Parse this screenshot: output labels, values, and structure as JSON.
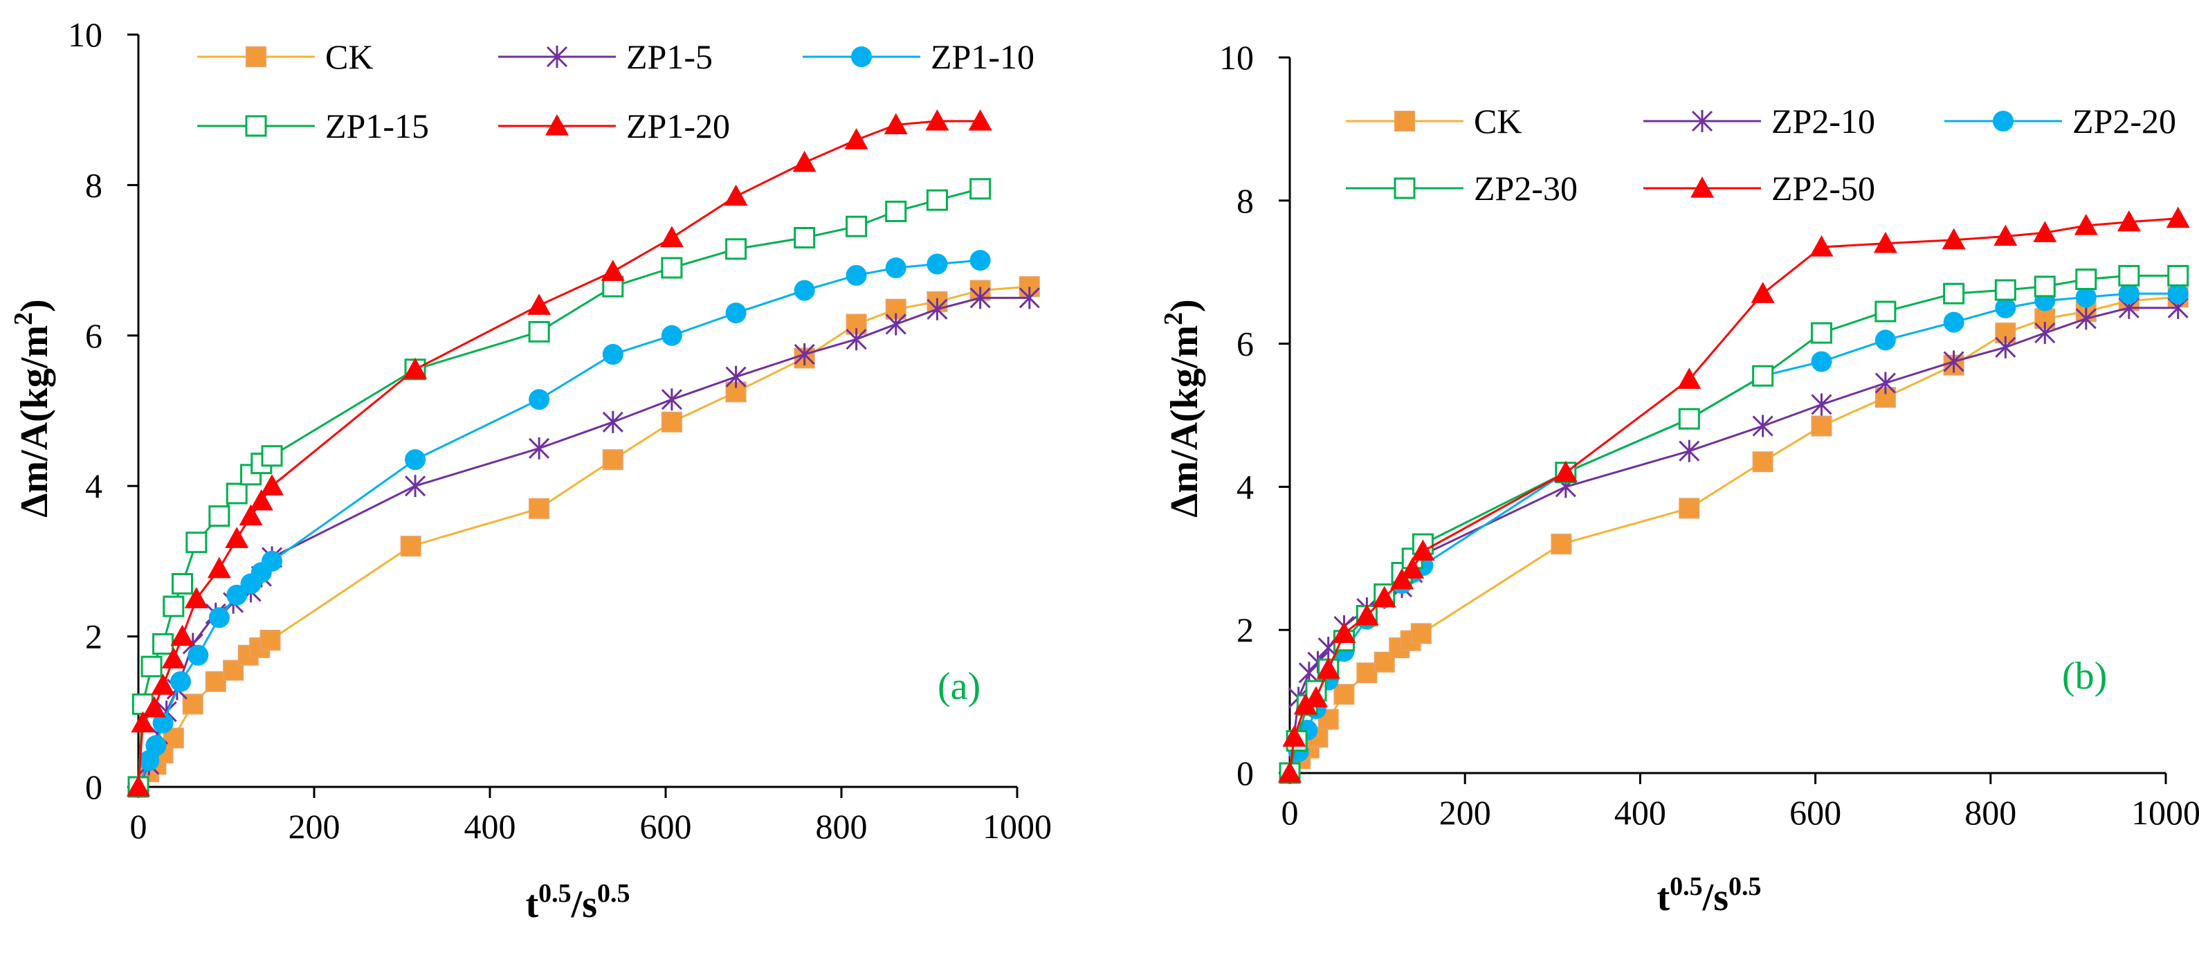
{
  "chart_data": [
    {
      "type": "line",
      "panel_label": "(a)",
      "xlabel_base": "t",
      "xlabel_exp1": "0.5",
      "xlabel_mid": "/s",
      "xlabel_exp2": "0.5",
      "ylabel_base": "Δm/A(kg/m",
      "ylabel_exp": "2",
      "ylabel_end": ")",
      "xlim": [
        0,
        1000
      ],
      "ylim": [
        0,
        10
      ],
      "xticks": [
        "0",
        "200",
        "400",
        "600",
        "800",
        "1000"
      ],
      "yticks": [
        "0",
        "2",
        "4",
        "6",
        "8",
        "10"
      ],
      "series": [
        {
          "name": "CK",
          "color": "#F5B335",
          "marker": "filled-square",
          "marker_color": "#F29A3A",
          "x": [
            0,
            12,
            20,
            28,
            40,
            62,
            88,
            108,
            125,
            138,
            150,
            310,
            456,
            540,
            607,
            680,
            758,
            817,
            862,
            909,
            958,
            1014
          ],
          "y": [
            0,
            0.2,
            0.3,
            0.45,
            0.65,
            1.1,
            1.4,
            1.55,
            1.75,
            1.85,
            1.95,
            3.2,
            3.7,
            4.35,
            4.85,
            5.25,
            5.7,
            6.15,
            6.35,
            6.45,
            6.6,
            6.65
          ]
        },
        {
          "name": "ZP1-5",
          "color": "#7030A0",
          "marker": "star-x",
          "marker_color": "#7030A0",
          "x": [
            0,
            12,
            22,
            32,
            44,
            62,
            88,
            108,
            128,
            140,
            152,
            315,
            456,
            540,
            607,
            680,
            758,
            817,
            862,
            909,
            958,
            1014
          ],
          "y": [
            0,
            0.3,
            0.7,
            1.0,
            1.3,
            1.9,
            2.3,
            2.45,
            2.6,
            2.8,
            3.05,
            4.0,
            4.5,
            4.85,
            5.15,
            5.45,
            5.75,
            5.95,
            6.15,
            6.35,
            6.5,
            6.5
          ]
        },
        {
          "name": "ZP1-10",
          "color": "#00B0F0",
          "marker": "filled-circle",
          "marker_color": "#00B0F0",
          "x": [
            0,
            12,
            20,
            28,
            48,
            68,
            92,
            112,
            128,
            140,
            152,
            315,
            456,
            540,
            607,
            680,
            758,
            817,
            862,
            909,
            958
          ],
          "y": [
            0,
            0.35,
            0.55,
            0.85,
            1.4,
            1.75,
            2.25,
            2.55,
            2.7,
            2.85,
            3.0,
            4.35,
            5.15,
            5.75,
            6.0,
            6.3,
            6.6,
            6.8,
            6.9,
            6.95,
            7.0
          ]
        },
        {
          "name": "ZP1-15",
          "color": "#00B050",
          "marker": "open-square",
          "marker_color": "#00B050",
          "x": [
            0,
            5,
            15,
            28,
            40,
            50,
            66,
            92,
            112,
            128,
            140,
            152,
            315,
            456,
            540,
            607,
            680,
            758,
            817,
            862,
            909,
            958
          ],
          "y": [
            0,
            1.1,
            1.6,
            1.9,
            2.4,
            2.7,
            3.25,
            3.6,
            3.9,
            4.15,
            4.3,
            4.4,
            5.55,
            6.05,
            6.65,
            6.9,
            7.15,
            7.3,
            7.45,
            7.65,
            7.8,
            7.95
          ]
        },
        {
          "name": "ZP1-20",
          "color": "#FF0000",
          "marker": "filled-triangle",
          "marker_color": "#FF0000",
          "x": [
            0,
            5,
            18,
            28,
            40,
            50,
            66,
            92,
            112,
            128,
            140,
            152,
            315,
            456,
            540,
            607,
            680,
            758,
            817,
            862,
            909,
            958
          ],
          "y": [
            0,
            0.85,
            1.05,
            1.35,
            1.7,
            2.0,
            2.5,
            2.9,
            3.3,
            3.6,
            3.8,
            4.0,
            5.55,
            6.4,
            6.85,
            7.3,
            7.85,
            8.3,
            8.6,
            8.8,
            8.85,
            8.85
          ]
        }
      ]
    },
    {
      "type": "line",
      "panel_label": "(b)",
      "xlabel_base": "t",
      "xlabel_exp1": "0.5",
      "xlabel_mid": "/s",
      "xlabel_exp2": "0.5",
      "ylabel_base": "Δm/A(kg/m",
      "ylabel_exp": "2",
      "ylabel_end": ")",
      "xlim": [
        0,
        1000
      ],
      "ylim": [
        0,
        10
      ],
      "xticks": [
        "0",
        "200",
        "400",
        "600",
        "800",
        "1000"
      ],
      "yticks": [
        "0",
        "2",
        "4",
        "6",
        "8",
        "10"
      ],
      "series": [
        {
          "name": "CK",
          "color": "#F5B335",
          "marker": "filled-square",
          "marker_color": "#F29A3A",
          "x": [
            0,
            12,
            22,
            32,
            44,
            62,
            88,
            108,
            125,
            138,
            150,
            310,
            456,
            540,
            607,
            680,
            758,
            817,
            862,
            909,
            958,
            1014
          ],
          "y": [
            0,
            0.2,
            0.35,
            0.5,
            0.75,
            1.1,
            1.4,
            1.55,
            1.75,
            1.85,
            1.95,
            3.2,
            3.7,
            4.35,
            4.85,
            5.25,
            5.7,
            6.15,
            6.35,
            6.45,
            6.6,
            6.65
          ]
        },
        {
          "name": "ZP2-10",
          "color": "#7030A0",
          "marker": "star-x",
          "marker_color": "#7030A0",
          "x": [
            0,
            10,
            22,
            32,
            44,
            62,
            88,
            108,
            128,
            140,
            152,
            315,
            456,
            540,
            607,
            680,
            758,
            817,
            862,
            909,
            958,
            1014
          ],
          "y": [
            0,
            1.05,
            1.4,
            1.55,
            1.75,
            2.05,
            2.3,
            2.45,
            2.6,
            2.8,
            3.05,
            4.0,
            4.5,
            4.85,
            5.15,
            5.45,
            5.75,
            5.95,
            6.15,
            6.35,
            6.5,
            6.5
          ]
        },
        {
          "name": "ZP2-20",
          "color": "#00B0F0",
          "marker": "filled-circle",
          "marker_color": "#00B0F0",
          "x": [
            0,
            10,
            20,
            30,
            44,
            62,
            88,
            108,
            128,
            140,
            152,
            315,
            456,
            540,
            607,
            680,
            758,
            817,
            862,
            909,
            958,
            1014
          ],
          "y": [
            0,
            0.3,
            0.6,
            0.9,
            1.3,
            1.7,
            2.15,
            2.45,
            2.65,
            2.8,
            2.9,
            4.2,
            4.95,
            5.55,
            5.75,
            6.05,
            6.3,
            6.5,
            6.6,
            6.65,
            6.7,
            6.7
          ]
        },
        {
          "name": "ZP2-30",
          "color": "#00B050",
          "marker": "open-square",
          "marker_color": "#00B050",
          "x": [
            0,
            8,
            20,
            30,
            44,
            62,
            88,
            108,
            128,
            140,
            152,
            315,
            456,
            540,
            607,
            680,
            758,
            817,
            862,
            909,
            958,
            1014
          ],
          "y": [
            0,
            0.45,
            0.95,
            1.15,
            1.45,
            1.85,
            2.2,
            2.5,
            2.8,
            3.0,
            3.2,
            4.2,
            4.95,
            5.55,
            6.15,
            6.45,
            6.7,
            6.75,
            6.8,
            6.9,
            6.95,
            6.95
          ]
        },
        {
          "name": "ZP2-50",
          "color": "#FF0000",
          "marker": "filled-triangle",
          "marker_color": "#FF0000",
          "x": [
            0,
            5,
            18,
            30,
            44,
            62,
            88,
            108,
            128,
            140,
            152,
            315,
            456,
            540,
            607,
            680,
            758,
            817,
            862,
            909,
            958,
            1014
          ],
          "y": [
            0,
            0.5,
            0.95,
            1.05,
            1.45,
            1.95,
            2.2,
            2.45,
            2.7,
            2.85,
            3.1,
            4.2,
            5.5,
            6.7,
            7.35,
            7.4,
            7.45,
            7.5,
            7.55,
            7.65,
            7.7,
            7.75
          ]
        }
      ]
    }
  ]
}
